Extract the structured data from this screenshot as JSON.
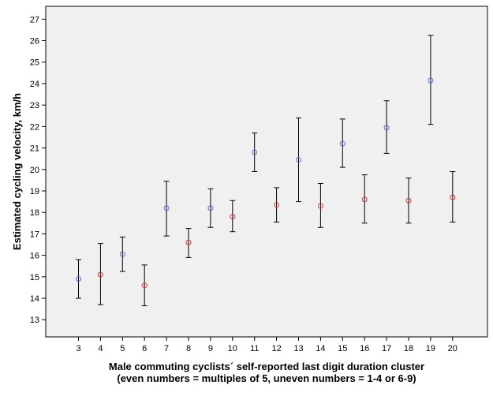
{
  "chart_data": {
    "type": "scatter",
    "title": "",
    "xlabel_line1": "Male commuting cyclists´ self-reported last digit duration cluster",
    "xlabel_line2": "(even numbers = multiples of 5, uneven numbers = 1-4 or 6-9)",
    "ylabel": "Estimated cycling velocity, km/h",
    "x_categories": [
      3,
      4,
      5,
      6,
      7,
      8,
      9,
      10,
      11,
      12,
      13,
      14,
      15,
      16,
      17,
      18,
      19,
      20
    ],
    "y_ticks": [
      13,
      14,
      15,
      16,
      17,
      18,
      19,
      20,
      21,
      22,
      23,
      24,
      25,
      26,
      27
    ],
    "ylim": [
      12.2,
      27.6
    ],
    "grid": false,
    "colors": {
      "odd": "#5a6fd6",
      "even": "#d63a3a",
      "errorbar": "#000000",
      "plot_bg": "#f0f0f0"
    },
    "points": [
      {
        "x": 3,
        "mean": 14.9,
        "low": 14.0,
        "high": 15.8,
        "group": "odd"
      },
      {
        "x": 4,
        "mean": 15.1,
        "low": 13.7,
        "high": 16.55,
        "group": "even"
      },
      {
        "x": 5,
        "mean": 16.05,
        "low": 15.25,
        "high": 16.85,
        "group": "odd"
      },
      {
        "x": 6,
        "mean": 14.6,
        "low": 13.65,
        "high": 15.55,
        "group": "even"
      },
      {
        "x": 7,
        "mean": 18.2,
        "low": 16.9,
        "high": 19.45,
        "group": "odd"
      },
      {
        "x": 8,
        "mean": 16.6,
        "low": 15.9,
        "high": 17.25,
        "group": "even"
      },
      {
        "x": 9,
        "mean": 18.2,
        "low": 17.3,
        "high": 19.1,
        "group": "odd"
      },
      {
        "x": 10,
        "mean": 17.8,
        "low": 17.1,
        "high": 18.55,
        "group": "even"
      },
      {
        "x": 11,
        "mean": 20.8,
        "low": 19.9,
        "high": 21.7,
        "group": "odd"
      },
      {
        "x": 12,
        "mean": 18.35,
        "low": 17.55,
        "high": 19.15,
        "group": "even"
      },
      {
        "x": 13,
        "mean": 20.45,
        "low": 18.5,
        "high": 22.4,
        "group": "odd"
      },
      {
        "x": 14,
        "mean": 18.3,
        "low": 17.3,
        "high": 19.35,
        "group": "even"
      },
      {
        "x": 15,
        "mean": 21.2,
        "low": 20.1,
        "high": 22.35,
        "group": "odd"
      },
      {
        "x": 16,
        "mean": 18.6,
        "low": 17.5,
        "high": 19.75,
        "group": "even"
      },
      {
        "x": 17,
        "mean": 21.95,
        "low": 20.75,
        "high": 23.2,
        "group": "odd"
      },
      {
        "x": 18,
        "mean": 18.55,
        "low": 17.5,
        "high": 19.6,
        "group": "even"
      },
      {
        "x": 19,
        "mean": 24.15,
        "low": 22.1,
        "high": 26.25,
        "group": "odd"
      },
      {
        "x": 20,
        "mean": 18.7,
        "low": 17.55,
        "high": 19.9,
        "group": "even"
      }
    ]
  }
}
